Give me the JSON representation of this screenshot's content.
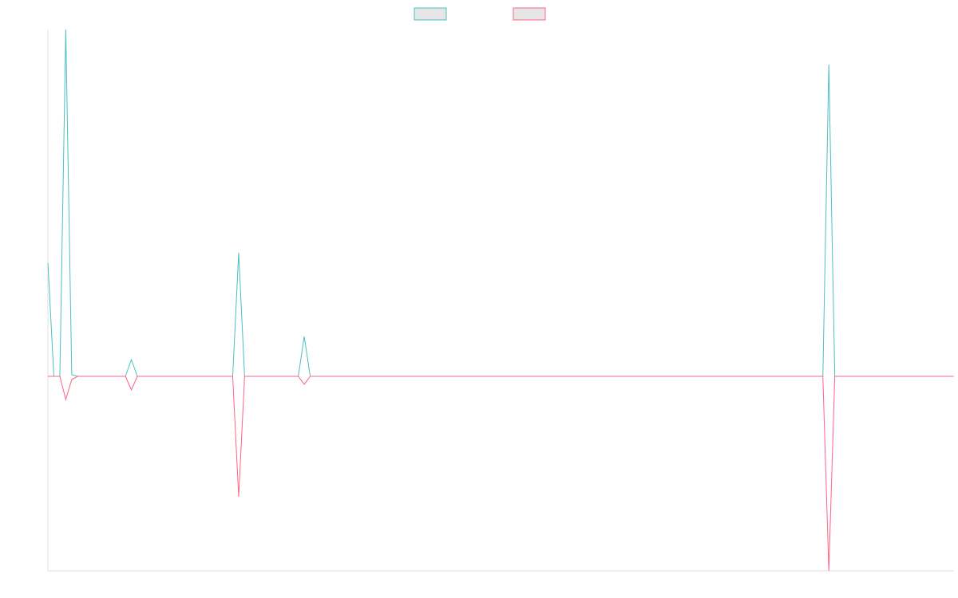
{
  "chart_data": {
    "type": "line",
    "x": [
      0,
      1,
      2,
      3,
      4,
      5,
      6,
      7,
      8,
      9,
      10,
      11,
      12,
      13,
      14,
      15,
      16,
      17,
      18,
      19,
      20,
      21,
      22,
      23,
      24,
      25,
      26,
      27,
      28,
      29,
      30,
      31,
      32,
      33,
      34,
      35,
      36,
      37,
      38,
      39,
      40,
      41,
      42,
      43,
      44,
      45,
      46,
      47,
      48,
      49,
      50,
      51,
      52,
      53,
      54,
      55,
      56,
      57,
      58,
      59,
      60,
      61,
      62,
      63,
      64,
      65,
      66,
      67,
      68,
      69,
      70,
      71,
      72,
      73,
      74,
      75,
      76,
      77,
      78,
      79,
      80,
      81,
      82,
      83,
      84,
      85,
      86,
      87,
      88,
      89,
      90,
      91,
      92,
      93,
      94,
      95,
      96,
      97,
      98,
      99,
      100,
      101,
      102,
      103,
      104,
      105,
      106,
      107,
      108,
      109,
      110,
      111,
      112,
      113,
      114,
      115,
      116,
      117,
      118,
      119,
      120,
      121,
      122,
      123,
      124,
      125,
      126,
      127,
      128,
      129,
      130,
      131,
      132,
      133,
      134,
      135,
      136,
      137,
      138,
      139,
      140,
      141,
      142,
      143,
      144,
      145,
      146,
      147,
      148,
      149,
      150,
      151,
      152
    ],
    "xlim": [
      0,
      152
    ],
    "ylim": [
      -244,
      435
    ],
    "series": [
      {
        "color": "#4bc0c0",
        "values": [
          142,
          0,
          0,
          435,
          2,
          0,
          0,
          0,
          0,
          0,
          0,
          0,
          0,
          0,
          21,
          0,
          0,
          0,
          0,
          0,
          0,
          0,
          0,
          0,
          0,
          0,
          0,
          0,
          0,
          0,
          0,
          0,
          155,
          0,
          0,
          0,
          0,
          0,
          0,
          0,
          0,
          0,
          0,
          50,
          0,
          0,
          0,
          0,
          0,
          0,
          0,
          0,
          0,
          0,
          0,
          0,
          0,
          0,
          0,
          0,
          0,
          0,
          0,
          0,
          0,
          0,
          0,
          0,
          0,
          0,
          0,
          0,
          0,
          0,
          0,
          0,
          0,
          0,
          0,
          0,
          0,
          0,
          0,
          0,
          0,
          0,
          0,
          0,
          0,
          0,
          0,
          0,
          0,
          0,
          0,
          0,
          0,
          0,
          0,
          0,
          0,
          0,
          0,
          0,
          0,
          0,
          0,
          0,
          0,
          0,
          0,
          0,
          0,
          0,
          0,
          0,
          0,
          0,
          0,
          0,
          0,
          0,
          0,
          0,
          0,
          0,
          0,
          0,
          0,
          0,
          0,
          391,
          0,
          0,
          0,
          0,
          0,
          0,
          0,
          0,
          0,
          0,
          0,
          0,
          0,
          0,
          0,
          0,
          0,
          0,
          0,
          0,
          0
        ]
      },
      {
        "color": "#ff6384",
        "values": [
          0,
          0,
          0,
          -29,
          -4,
          0,
          0,
          0,
          0,
          0,
          0,
          0,
          0,
          0,
          -17,
          0,
          0,
          0,
          0,
          0,
          0,
          0,
          0,
          0,
          0,
          0,
          0,
          0,
          0,
          0,
          0,
          0,
          -151,
          0,
          0,
          0,
          0,
          0,
          0,
          0,
          0,
          0,
          0,
          -10,
          0,
          0,
          0,
          0,
          0,
          0,
          0,
          0,
          0,
          0,
          0,
          0,
          0,
          0,
          0,
          0,
          0,
          0,
          0,
          0,
          0,
          0,
          0,
          0,
          0,
          0,
          0,
          0,
          0,
          0,
          0,
          0,
          0,
          0,
          0,
          0,
          0,
          0,
          0,
          0,
          0,
          0,
          0,
          0,
          0,
          0,
          0,
          0,
          0,
          0,
          0,
          0,
          0,
          0,
          0,
          0,
          0,
          0,
          0,
          0,
          0,
          0,
          0,
          0,
          0,
          0,
          0,
          0,
          0,
          0,
          0,
          0,
          0,
          0,
          0,
          0,
          0,
          0,
          0,
          0,
          0,
          0,
          0,
          0,
          0,
          0,
          0,
          -244,
          0,
          0,
          0,
          0,
          0,
          0,
          0,
          0,
          0,
          0,
          0,
          0,
          0,
          0,
          0,
          0,
          0,
          0,
          0,
          0,
          0
        ]
      }
    ],
    "legend": "top",
    "grid": false
  }
}
